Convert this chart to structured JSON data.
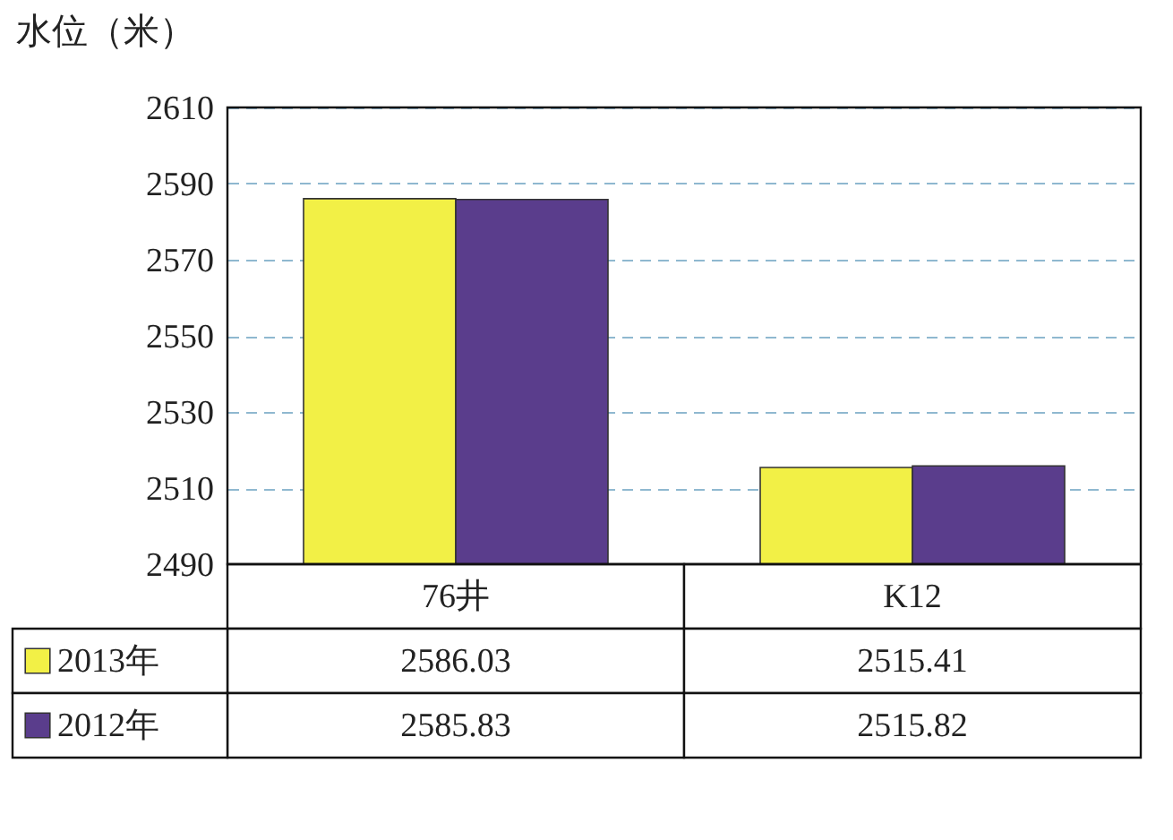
{
  "chart_data": {
    "type": "bar",
    "ylabel": "水位（米）",
    "categories": [
      "76井",
      "K12"
    ],
    "series": [
      {
        "name": "2013年",
        "color": "#f2f046",
        "values": [
          2586.03,
          2515.41
        ]
      },
      {
        "name": "2012年",
        "color": "#5a3d8c",
        "values": [
          2585.83,
          2515.82
        ]
      }
    ],
    "ylim": [
      2490,
      2610
    ],
    "yticks": [
      2490,
      2510,
      2530,
      2550,
      2570,
      2590,
      2610
    ],
    "grid": "y",
    "legend": "bottom left",
    "data_labels": true
  }
}
